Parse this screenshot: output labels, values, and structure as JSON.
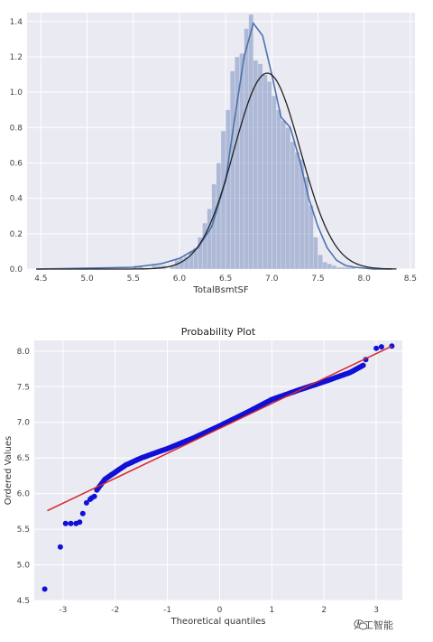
{
  "chart_data": [
    {
      "type": "bar",
      "title": "",
      "xlabel": "TotalBsmtSF",
      "ylabel": "",
      "xlim": [
        4.35,
        8.55
      ],
      "ylim": [
        0,
        1.45
      ],
      "xticks": [
        "4.5",
        "5.0",
        "5.5",
        "6.0",
        "6.5",
        "7.0",
        "7.5",
        "8.0",
        "8.5"
      ],
      "yticks": [
        "0.0",
        "0.2",
        "0.4",
        "0.6",
        "0.8",
        "1.0",
        "1.2",
        "1.4"
      ],
      "grid": true,
      "bins": {
        "start": 5.5,
        "width": 0.05,
        "density": [
          0.02,
          0.02,
          0.0,
          0.0,
          0.02,
          0.02,
          0.02,
          0.0,
          0.02,
          0.05,
          0.06,
          0.07,
          0.1,
          0.12,
          0.18,
          0.26,
          0.34,
          0.48,
          0.6,
          0.78,
          0.9,
          1.12,
          1.2,
          1.22,
          1.36,
          1.44,
          1.18,
          1.16,
          1.1,
          1.06,
          0.98,
          0.9,
          0.84,
          0.8,
          0.72,
          0.66,
          0.62,
          0.52,
          0.36,
          0.18,
          0.08,
          0.04,
          0.03,
          0.02,
          0.01,
          0.01,
          0.01,
          0.01
        ]
      },
      "series": [
        {
          "kind": "kde",
          "x": [
            4.45,
            5.5,
            5.8,
            6.0,
            6.2,
            6.35,
            6.5,
            6.6,
            6.7,
            6.8,
            6.9,
            7.0,
            7.1,
            7.2,
            7.3,
            7.4,
            7.5,
            7.6,
            7.7,
            7.8,
            7.9,
            8.1,
            8.3
          ],
          "y": [
            0.0,
            0.01,
            0.03,
            0.06,
            0.12,
            0.24,
            0.5,
            0.86,
            1.2,
            1.39,
            1.32,
            1.1,
            0.86,
            0.8,
            0.62,
            0.4,
            0.24,
            0.12,
            0.05,
            0.02,
            0.01,
            0.0,
            0.0
          ]
        },
        {
          "kind": "normal-fit",
          "mean": 6.95,
          "std": 0.36
        }
      ]
    },
    {
      "type": "scatter",
      "title": "Probability Plot",
      "xlabel": "Theoretical quantiles",
      "ylabel": "Ordered Values",
      "xlim": [
        -3.55,
        3.5
      ],
      "ylim": [
        4.5,
        8.15
      ],
      "xticks": [
        "-3",
        "-2",
        "-1",
        "0",
        "1",
        "2",
        "3"
      ],
      "yticks": [
        "4.5",
        "5.0",
        "5.5",
        "6.0",
        "6.5",
        "7.0",
        "7.5",
        "8.0"
      ],
      "grid": true,
      "fit_line": {
        "x": [
          -3.3,
          3.3
        ],
        "y": [
          5.76,
          8.07
        ]
      },
      "body_curve": {
        "x": [
          -2.35,
          -2.2,
          -2.0,
          -1.8,
          -1.5,
          -1.2,
          -1.0,
          -0.5,
          0.0,
          0.5,
          1.0,
          1.5,
          2.0,
          2.5,
          2.75
        ],
        "y": [
          6.05,
          6.2,
          6.3,
          6.4,
          6.5,
          6.58,
          6.63,
          6.78,
          6.95,
          7.13,
          7.32,
          7.45,
          7.57,
          7.7,
          7.8
        ]
      },
      "tail_points": {
        "x": [
          -3.35,
          -3.05,
          -2.95,
          -2.85,
          -2.75,
          -2.68,
          -2.62,
          -2.55,
          -2.48,
          -2.45,
          -2.4,
          2.8,
          3.0,
          3.1,
          3.3
        ],
        "y": [
          4.66,
          5.25,
          5.58,
          5.58,
          5.58,
          5.6,
          5.72,
          5.87,
          5.92,
          5.94,
          5.96,
          7.88,
          8.04,
          8.06,
          8.07
        ]
      }
    }
  ],
  "watermark": {
    "text": "人工智能",
    "icon": "wechat-icon"
  }
}
